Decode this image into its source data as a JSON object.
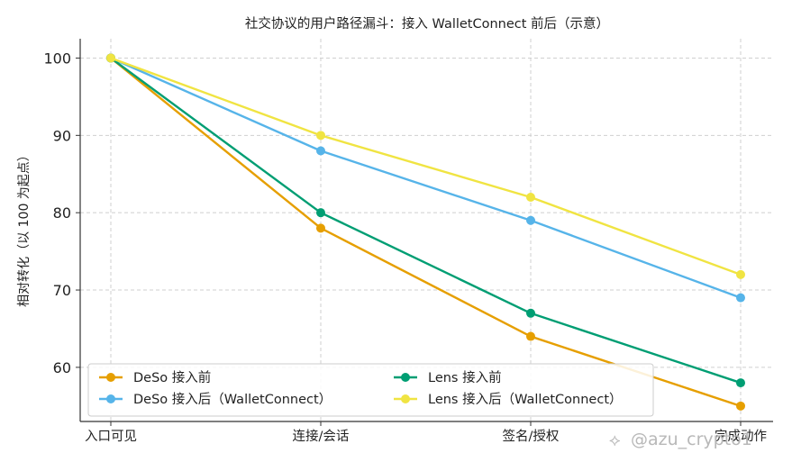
{
  "chart_data": {
    "type": "line",
    "title": "社交协议的用户路径漏斗：接入 WalletConnect 前后（示意）",
    "xlabel": "",
    "ylabel": "相对转化（以 100 为起点）",
    "categories": [
      "入口可见",
      "连接/会话",
      "签名/授权",
      "完成动作"
    ],
    "yticks": [
      60,
      70,
      80,
      90,
      100
    ],
    "ylim": [
      53,
      102.5
    ],
    "grid": true,
    "legend_position": "bottom-left",
    "series": [
      {
        "name": "DeSo 接入前",
        "color": "#E69F00",
        "values": [
          100,
          78,
          64,
          55
        ]
      },
      {
        "name": "DeSo 接入后（WalletConnect）",
        "color": "#56B4E9",
        "values": [
          100,
          88,
          79,
          69
        ]
      },
      {
        "name": "Lens 接入前",
        "color": "#009E73",
        "values": [
          100,
          80,
          67,
          58
        ]
      },
      {
        "name": "Lens 接入后（WalletConnect）",
        "color": "#F0E442",
        "values": [
          100,
          90,
          82,
          72
        ]
      }
    ]
  },
  "watermark": {
    "text": "@azu_crypto1"
  }
}
